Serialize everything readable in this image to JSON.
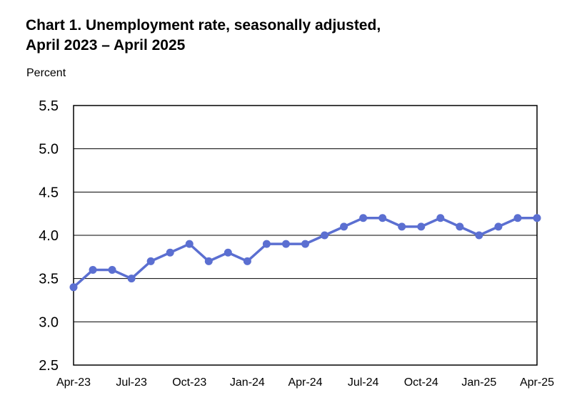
{
  "chart_data": {
    "type": "line",
    "title": "Chart 1. Unemployment rate, seasonally adjusted,",
    "subtitle": "April 2023 – April 2025",
    "ylabel": "Percent",
    "xlabel": "",
    "ylim": [
      2.5,
      5.5
    ],
    "yticks": [
      "5.5",
      "5.0",
      "4.5",
      "4.0",
      "3.5",
      "3.0",
      "2.5"
    ],
    "xtick_labels": [
      "Apr-23",
      "Jul-23",
      "Oct-23",
      "Jan-24",
      "Apr-24",
      "Jul-24",
      "Oct-24",
      "Jan-25",
      "Apr-25"
    ],
    "x": [
      "Apr-23",
      "May-23",
      "Jun-23",
      "Jul-23",
      "Aug-23",
      "Sep-23",
      "Oct-23",
      "Nov-23",
      "Dec-23",
      "Jan-24",
      "Feb-24",
      "Mar-24",
      "Apr-24",
      "May-24",
      "Jun-24",
      "Jul-24",
      "Aug-24",
      "Sep-24",
      "Oct-24",
      "Nov-24",
      "Dec-24",
      "Jan-25",
      "Feb-25",
      "Mar-25",
      "Apr-25"
    ],
    "series": [
      {
        "values": [
          3.4,
          3.6,
          3.6,
          3.5,
          3.7,
          3.8,
          3.9,
          3.7,
          3.8,
          3.7,
          3.9,
          3.9,
          3.9,
          4.0,
          4.1,
          4.2,
          4.2,
          4.1,
          4.1,
          4.2,
          4.1,
          4.0,
          4.1,
          4.2,
          4.2
        ]
      }
    ],
    "line_color": "#5b6fd1",
    "grid": true
  }
}
